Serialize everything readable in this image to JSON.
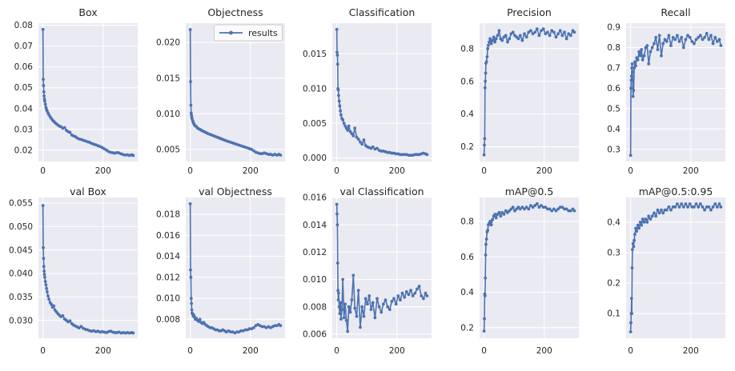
{
  "figure": {
    "kind": "training-results-grid",
    "rows": 2,
    "cols": 5,
    "background": "#ffffff"
  },
  "style": {
    "axes_background": "#eaeaf2",
    "grid_color": "#ffffff",
    "line_color": "#4c72b0",
    "marker_color": "#4c72b0",
    "text_color": "#262626",
    "legend_face": "#ffffff",
    "legend_edge": "#cccccc"
  },
  "legend": {
    "label": "results",
    "chart": "Objectness",
    "position": "upper right"
  },
  "chart_data": {
    "type": "line",
    "marker": "dot",
    "grid": true,
    "xlabel": "",
    "ylabel": "",
    "x_ticks": [
      0,
      200
    ],
    "xlim": [
      -15,
      315
    ],
    "x": [
      0,
      1,
      2,
      3,
      4,
      5,
      6,
      8,
      10,
      12,
      14,
      17,
      20,
      24,
      28,
      32,
      36,
      40,
      45,
      50,
      55,
      60,
      66,
      72,
      78,
      84,
      90,
      96,
      102,
      108,
      114,
      120,
      127,
      134,
      141,
      148,
      155,
      162,
      169,
      176,
      183,
      190,
      197,
      204,
      211,
      218,
      225,
      232,
      239,
      246,
      253,
      260,
      267,
      274,
      281,
      288,
      295,
      300
    ],
    "charts": [
      {
        "title": "Box",
        "yticks": [
          0.02,
          0.03,
          0.04,
          0.05,
          0.06,
          0.07,
          0.08
        ],
        "ytick_decimals": 2,
        "ylim": [
          0.0145,
          0.081
        ],
        "legend": false,
        "values": [
          0.078,
          0.054,
          0.051,
          0.048,
          0.046,
          0.0445,
          0.0435,
          0.042,
          0.0405,
          0.0395,
          0.0388,
          0.0378,
          0.037,
          0.036,
          0.0352,
          0.0344,
          0.0338,
          0.0332,
          0.0326,
          0.032,
          0.0315,
          0.0312,
          0.0305,
          0.0308,
          0.0295,
          0.0288,
          0.0285,
          0.0272,
          0.0268,
          0.0264,
          0.0258,
          0.0253,
          0.0251,
          0.0247,
          0.0244,
          0.024,
          0.0237,
          0.0232,
          0.0228,
          0.0225,
          0.0221,
          0.0217,
          0.0212,
          0.0206,
          0.02,
          0.0193,
          0.0189,
          0.0187,
          0.0185,
          0.0188,
          0.0186,
          0.0182,
          0.0178,
          0.0176,
          0.0177,
          0.0174,
          0.0177,
          0.0174
        ]
      },
      {
        "title": "Objectness",
        "yticks": [
          0.005,
          0.01,
          0.015,
          0.02
        ],
        "ytick_decimals": 3,
        "ylim": [
          0.0033,
          0.0227
        ],
        "legend": true,
        "values": [
          0.0218,
          0.0145,
          0.0112,
          0.0101,
          0.0098,
          0.0095,
          0.0093,
          0.009,
          0.0088,
          0.0086,
          0.0084,
          0.0083,
          0.0082,
          0.008,
          0.0079,
          0.0078,
          0.0077,
          0.0076,
          0.0075,
          0.0074,
          0.0073,
          0.0072,
          0.0071,
          0.007,
          0.0069,
          0.0068,
          0.0067,
          0.0066,
          0.0065,
          0.0064,
          0.0063,
          0.0062,
          0.0061,
          0.006,
          0.0059,
          0.0058,
          0.0057,
          0.0056,
          0.0055,
          0.0054,
          0.0053,
          0.0052,
          0.0051,
          0.005,
          0.0048,
          0.0046,
          0.0045,
          0.0044,
          0.0044,
          0.0045,
          0.0044,
          0.0043,
          0.0043,
          0.0042,
          0.0043,
          0.0042,
          0.0043,
          0.0042
        ]
      },
      {
        "title": "Classification",
        "yticks": [
          0.0,
          0.005,
          0.01,
          0.015
        ],
        "ytick_decimals": 3,
        "ylim": [
          -0.0005,
          0.0194
        ],
        "legend": false,
        "values": [
          0.0185,
          0.0152,
          0.0148,
          0.0135,
          0.01,
          0.0098,
          0.009,
          0.0082,
          0.0075,
          0.0068,
          0.0062,
          0.0057,
          0.0055,
          0.005,
          0.0046,
          0.0043,
          0.004,
          0.0046,
          0.0038,
          0.0035,
          0.0032,
          0.0043,
          0.003,
          0.0027,
          0.0023,
          0.002,
          0.0026,
          0.0018,
          0.0016,
          0.0015,
          0.0014,
          0.0016,
          0.0013,
          0.0014,
          0.0011,
          0.001,
          0.001,
          0.0009,
          0.0008,
          0.0008,
          0.0007,
          0.0007,
          0.0006,
          0.0006,
          0.0005,
          0.0005,
          0.0005,
          0.0005,
          0.0004,
          0.0004,
          0.0004,
          0.0005,
          0.0005,
          0.0005,
          0.0006,
          0.0007,
          0.0006,
          0.0005
        ]
      },
      {
        "title": "Precision",
        "yticks": [
          0.2,
          0.4,
          0.6,
          0.8
        ],
        "ytick_decimals": 1,
        "ylim": [
          0.11,
          0.955
        ],
        "legend": false,
        "values": [
          0.15,
          0.21,
          0.25,
          0.56,
          0.6,
          0.65,
          0.71,
          0.72,
          0.75,
          0.8,
          0.82,
          0.84,
          0.86,
          0.83,
          0.85,
          0.87,
          0.84,
          0.86,
          0.88,
          0.91,
          0.86,
          0.85,
          0.87,
          0.88,
          0.84,
          0.86,
          0.89,
          0.9,
          0.88,
          0.87,
          0.86,
          0.88,
          0.85,
          0.89,
          0.87,
          0.9,
          0.91,
          0.89,
          0.9,
          0.92,
          0.88,
          0.91,
          0.92,
          0.89,
          0.9,
          0.88,
          0.91,
          0.9,
          0.87,
          0.89,
          0.91,
          0.88,
          0.9,
          0.86,
          0.89,
          0.88,
          0.91,
          0.9
        ]
      },
      {
        "title": "Recall",
        "yticks": [
          0.3,
          0.4,
          0.5,
          0.6,
          0.7,
          0.8,
          0.9
        ],
        "ytick_decimals": 1,
        "ylim": [
          0.24,
          0.92
        ],
        "legend": false,
        "values": [
          0.27,
          0.6,
          0.64,
          0.66,
          0.7,
          0.72,
          0.68,
          0.56,
          0.59,
          0.7,
          0.73,
          0.71,
          0.75,
          0.74,
          0.78,
          0.76,
          0.79,
          0.74,
          0.76,
          0.8,
          0.81,
          0.72,
          0.78,
          0.8,
          0.82,
          0.85,
          0.79,
          0.86,
          0.76,
          0.82,
          0.84,
          0.83,
          0.86,
          0.81,
          0.85,
          0.84,
          0.86,
          0.83,
          0.85,
          0.8,
          0.84,
          0.86,
          0.85,
          0.83,
          0.82,
          0.84,
          0.85,
          0.86,
          0.84,
          0.85,
          0.87,
          0.84,
          0.86,
          0.82,
          0.85,
          0.83,
          0.84,
          0.81
        ]
      },
      {
        "title": "val Box",
        "yticks": [
          0.03,
          0.035,
          0.04,
          0.045,
          0.05,
          0.055
        ],
        "ytick_decimals": 3,
        "ylim": [
          0.0262,
          0.0562
        ],
        "legend": false,
        "values": [
          0.0545,
          0.0455,
          0.0432,
          0.0415,
          0.0405,
          0.0398,
          0.0392,
          0.0383,
          0.0376,
          0.0368,
          0.0361,
          0.0352,
          0.0345,
          0.0338,
          0.0334,
          0.0328,
          0.0331,
          0.0322,
          0.0318,
          0.0314,
          0.0311,
          0.0308,
          0.031,
          0.0303,
          0.03,
          0.0297,
          0.0299,
          0.0293,
          0.029,
          0.0288,
          0.0286,
          0.0284,
          0.0287,
          0.0283,
          0.0281,
          0.028,
          0.0278,
          0.0277,
          0.0278,
          0.0276,
          0.0277,
          0.0275,
          0.0276,
          0.0275,
          0.0274,
          0.0276,
          0.0277,
          0.0275,
          0.0274,
          0.0274,
          0.0275,
          0.0273,
          0.0274,
          0.0273,
          0.0274,
          0.0273,
          0.0274,
          0.0273
        ]
      },
      {
        "title": "val Objectness",
        "yticks": [
          0.008,
          0.01,
          0.012,
          0.014,
          0.016,
          0.018
        ],
        "ytick_decimals": 3,
        "ylim": [
          0.0062,
          0.0196
        ],
        "legend": false,
        "values": [
          0.019,
          0.0127,
          0.012,
          0.01,
          0.0095,
          0.0089,
          0.0086,
          0.0085,
          0.0083,
          0.0084,
          0.0082,
          0.008,
          0.0081,
          0.0079,
          0.0078,
          0.008,
          0.0077,
          0.0076,
          0.0077,
          0.0075,
          0.0074,
          0.0073,
          0.0072,
          0.0072,
          0.0071,
          0.007,
          0.007,
          0.0069,
          0.0069,
          0.007,
          0.0069,
          0.0068,
          0.0069,
          0.0068,
          0.0068,
          0.0067,
          0.0068,
          0.0068,
          0.0069,
          0.0069,
          0.007,
          0.007,
          0.0071,
          0.0071,
          0.0072,
          0.0074,
          0.0075,
          0.0074,
          0.0073,
          0.0073,
          0.0072,
          0.0073,
          0.0072,
          0.0073,
          0.0074,
          0.0074,
          0.0075,
          0.0074
        ]
      },
      {
        "title": "val Classification",
        "yticks": [
          0.006,
          0.008,
          0.01,
          0.012,
          0.014,
          0.016
        ],
        "ytick_decimals": 3,
        "ylim": [
          0.0057,
          0.016
        ],
        "legend": false,
        "values": [
          0.0155,
          0.0148,
          0.014,
          0.0112,
          0.0092,
          0.0085,
          0.009,
          0.008,
          0.0075,
          0.0083,
          0.0071,
          0.0078,
          0.01,
          0.0072,
          0.0082,
          0.007,
          0.0062,
          0.008,
          0.0076,
          0.0085,
          0.0103,
          0.0079,
          0.0073,
          0.0092,
          0.0065,
          0.008,
          0.0073,
          0.0086,
          0.0082,
          0.0088,
          0.0078,
          0.0083,
          0.0072,
          0.0086,
          0.008,
          0.0076,
          0.0082,
          0.0085,
          0.008,
          0.0078,
          0.0084,
          0.0086,
          0.0082,
          0.0088,
          0.0085,
          0.009,
          0.0087,
          0.0091,
          0.0089,
          0.0092,
          0.0088,
          0.009,
          0.0093,
          0.0095,
          0.0088,
          0.0086,
          0.009,
          0.0088
        ]
      },
      {
        "title": "mAP@0.5",
        "yticks": [
          0.2,
          0.4,
          0.6,
          0.8
        ],
        "ytick_decimals": 1,
        "ylim": [
          0.14,
          0.935
        ],
        "legend": false,
        "values": [
          0.18,
          0.25,
          0.39,
          0.38,
          0.48,
          0.61,
          0.67,
          0.7,
          0.74,
          0.75,
          0.78,
          0.79,
          0.8,
          0.78,
          0.81,
          0.83,
          0.84,
          0.82,
          0.84,
          0.85,
          0.83,
          0.85,
          0.84,
          0.86,
          0.85,
          0.86,
          0.87,
          0.88,
          0.86,
          0.87,
          0.88,
          0.87,
          0.88,
          0.87,
          0.88,
          0.87,
          0.89,
          0.88,
          0.89,
          0.9,
          0.88,
          0.89,
          0.88,
          0.88,
          0.87,
          0.87,
          0.86,
          0.87,
          0.86,
          0.87,
          0.88,
          0.88,
          0.87,
          0.87,
          0.86,
          0.86,
          0.87,
          0.86
        ]
      },
      {
        "title": "mAP@0.5:0.95",
        "yticks": [
          0.1,
          0.2,
          0.3,
          0.4
        ],
        "ytick_decimals": 1,
        "ylim": [
          0.019,
          0.481
        ],
        "legend": false,
        "values": [
          0.04,
          0.07,
          0.1,
          0.15,
          0.1,
          0.25,
          0.31,
          0.33,
          0.32,
          0.34,
          0.36,
          0.38,
          0.37,
          0.39,
          0.38,
          0.4,
          0.39,
          0.41,
          0.4,
          0.41,
          0.4,
          0.42,
          0.41,
          0.42,
          0.43,
          0.42,
          0.44,
          0.43,
          0.44,
          0.43,
          0.44,
          0.44,
          0.45,
          0.44,
          0.45,
          0.45,
          0.46,
          0.45,
          0.46,
          0.45,
          0.46,
          0.45,
          0.46,
          0.45,
          0.45,
          0.46,
          0.45,
          0.46,
          0.45,
          0.44,
          0.45,
          0.45,
          0.44,
          0.45,
          0.46,
          0.45,
          0.46,
          0.45
        ]
      }
    ]
  }
}
